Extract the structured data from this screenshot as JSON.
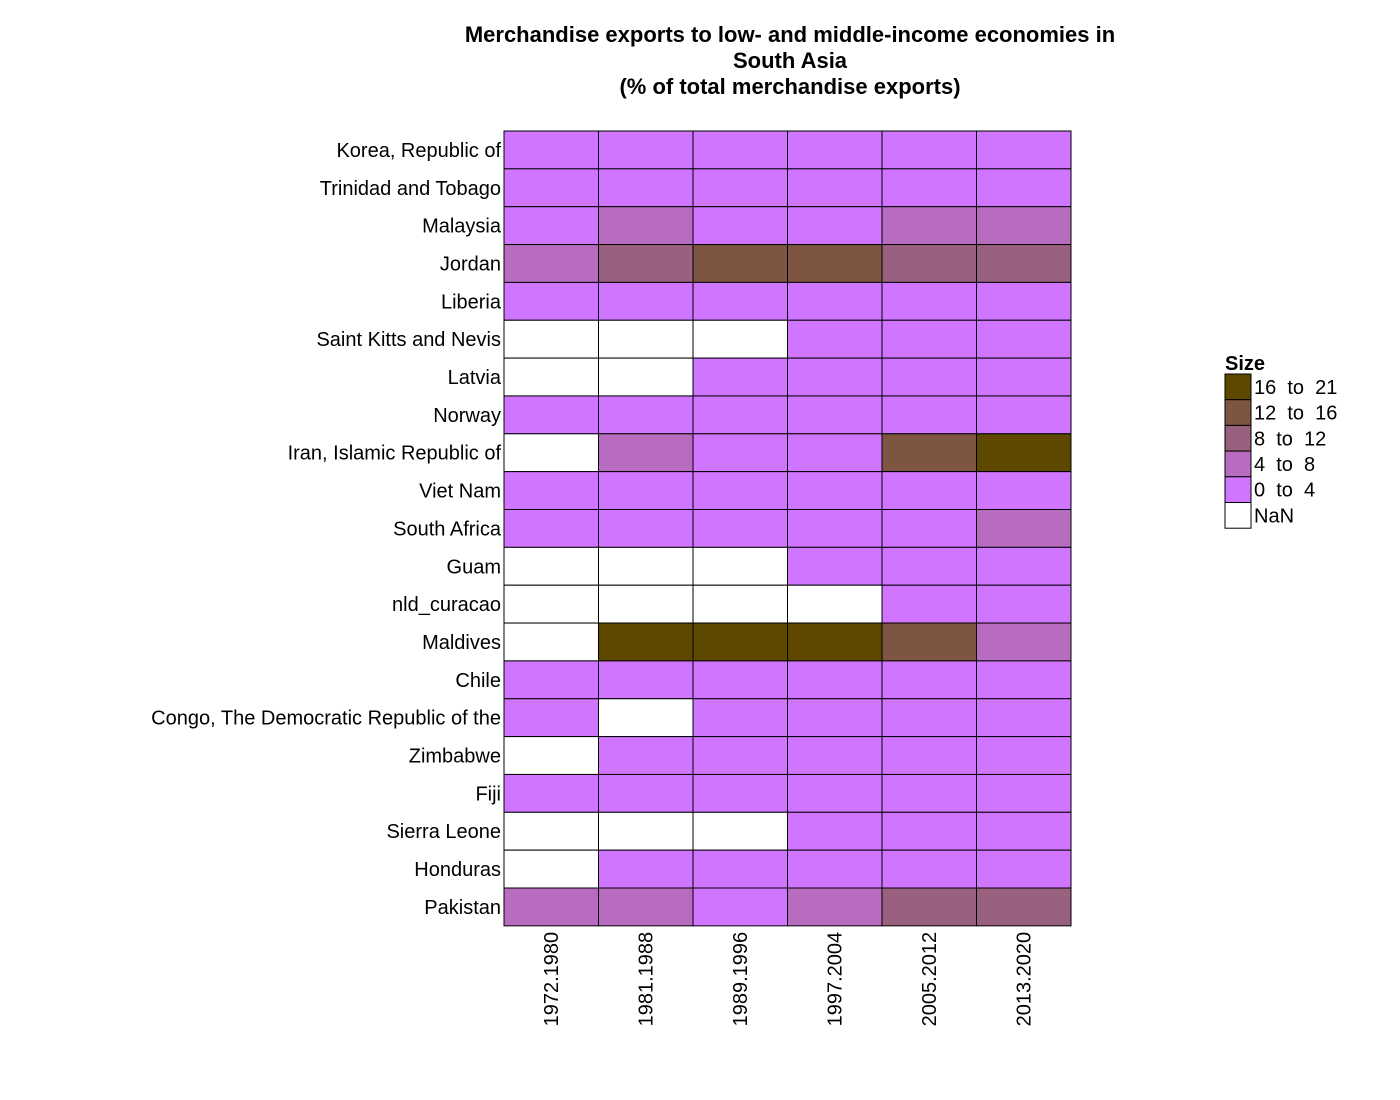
{
  "chart_data": {
    "type": "heatmap",
    "title": "Merchandise exports to low- and middle-income economies in South Asia (% of total merchandise exports)",
    "title_lines": [
      "Merchandise exports to low- and middle-income economies in",
      "South Asia",
      "(% of total merchandise exports)"
    ],
    "xlabel": "",
    "ylabel": "",
    "columns": [
      "1972.1980",
      "1981.1988",
      "1989.1996",
      "1997.2004",
      "2005.2012",
      "2013.2020"
    ],
    "rows": [
      "Korea, Republic of",
      "Trinidad and Tobago",
      "Malaysia",
      "Jordan",
      "Liberia",
      "Saint Kitts and Nevis",
      "Latvia",
      "Norway",
      "Iran, Islamic Republic of",
      "Viet Nam",
      "South Africa",
      "Guam",
      "nld_curacao",
      "Maldives",
      "Chile",
      "Congo, The Democratic Republic of the",
      "Zimbabwe",
      "Fiji",
      "Sierra Leone",
      "Honduras",
      "Pakistan"
    ],
    "bins": [
      "0 to 4",
      "4 to 8",
      "8 to 12",
      "12 to 16",
      "16 to 21",
      "NaN"
    ],
    "values": [
      [
        "0 to 4",
        "0 to 4",
        "0 to 4",
        "0 to 4",
        "0 to 4",
        "0 to 4"
      ],
      [
        "0 to 4",
        "0 to 4",
        "0 to 4",
        "0 to 4",
        "0 to 4",
        "0 to 4"
      ],
      [
        "0 to 4",
        "4 to 8",
        "0 to 4",
        "0 to 4",
        "4 to 8",
        "4 to 8"
      ],
      [
        "4 to 8",
        "8 to 12",
        "12 to 16",
        "12 to 16",
        "8 to 12",
        "8 to 12"
      ],
      [
        "0 to 4",
        "0 to 4",
        "0 to 4",
        "0 to 4",
        "0 to 4",
        "0 to 4"
      ],
      [
        "NaN",
        "NaN",
        "NaN",
        "0 to 4",
        "0 to 4",
        "0 to 4"
      ],
      [
        "NaN",
        "NaN",
        "0 to 4",
        "0 to 4",
        "0 to 4",
        "0 to 4"
      ],
      [
        "0 to 4",
        "0 to 4",
        "0 to 4",
        "0 to 4",
        "0 to 4",
        "0 to 4"
      ],
      [
        "NaN",
        "4 to 8",
        "0 to 4",
        "0 to 4",
        "12 to 16",
        "16 to 21"
      ],
      [
        "0 to 4",
        "0 to 4",
        "0 to 4",
        "0 to 4",
        "0 to 4",
        "0 to 4"
      ],
      [
        "0 to 4",
        "0 to 4",
        "0 to 4",
        "0 to 4",
        "0 to 4",
        "4 to 8"
      ],
      [
        "NaN",
        "NaN",
        "NaN",
        "0 to 4",
        "0 to 4",
        "0 to 4"
      ],
      [
        "NaN",
        "NaN",
        "NaN",
        "NaN",
        "0 to 4",
        "0 to 4"
      ],
      [
        "NaN",
        "16 to 21",
        "16 to 21",
        "16 to 21",
        "12 to 16",
        "4 to 8"
      ],
      [
        "0 to 4",
        "0 to 4",
        "0 to 4",
        "0 to 4",
        "0 to 4",
        "0 to 4"
      ],
      [
        "0 to 4",
        "NaN",
        "0 to 4",
        "0 to 4",
        "0 to 4",
        "0 to 4"
      ],
      [
        "NaN",
        "0 to 4",
        "0 to 4",
        "0 to 4",
        "0 to 4",
        "0 to 4"
      ],
      [
        "0 to 4",
        "0 to 4",
        "0 to 4",
        "0 to 4",
        "0 to 4",
        "0 to 4"
      ],
      [
        "NaN",
        "NaN",
        "NaN",
        "0 to 4",
        "0 to 4",
        "0 to 4"
      ],
      [
        "NaN",
        "0 to 4",
        "0 to 4",
        "0 to 4",
        "0 to 4",
        "0 to 4"
      ],
      [
        "4 to 8",
        "4 to 8",
        "0 to 4",
        "4 to 8",
        "8 to 12",
        "8 to 12"
      ]
    ],
    "colors": {
      "0 to 4": "#D075FF",
      "4 to 8": "#B86CC0",
      "8 to 12": "#9A6080",
      "12 to 16": "#7D5540",
      "16 to 21": "#5E4800",
      "NaN": "#FFFFFF"
    },
    "legend": {
      "title": "Size",
      "position": "right",
      "entries": [
        {
          "label": "16  to  21",
          "bin": "16 to 21"
        },
        {
          "label": "12  to  16",
          "bin": "12 to 16"
        },
        {
          "label": "8  to  12",
          "bin": "8 to 12"
        },
        {
          "label": "4  to  8",
          "bin": "4 to 8"
        },
        {
          "label": "0  to  4",
          "bin": "0 to 4"
        },
        {
          "label": "NaN",
          "bin": "NaN"
        }
      ]
    },
    "grid": false
  }
}
